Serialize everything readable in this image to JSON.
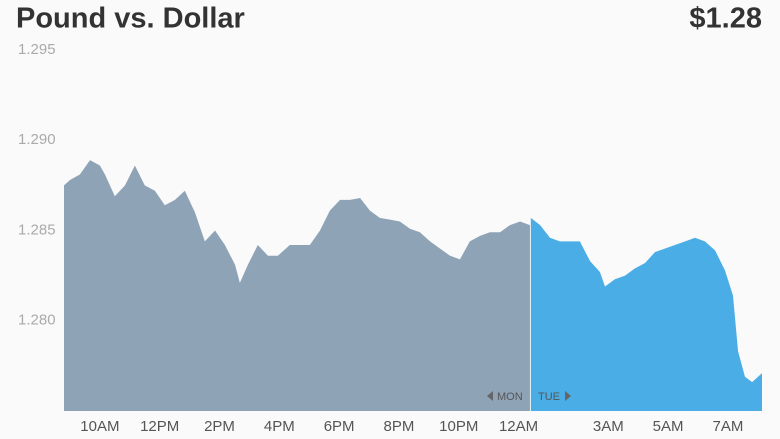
{
  "chart_data": {
    "type": "area",
    "title": "Pound vs. Dollar",
    "current_value": "$1.28",
    "xlim": [
      8.8,
      32.14
    ],
    "ylim": [
      1.275,
      1.295
    ],
    "yticks": [
      {
        "value": 1.295,
        "label": "1.295"
      },
      {
        "value": 1.29,
        "label": "1.290"
      },
      {
        "value": 1.285,
        "label": "1.285"
      },
      {
        "value": 1.28,
        "label": "1.280"
      }
    ],
    "xticks": [
      {
        "value": 10,
        "label": "10AM"
      },
      {
        "value": 12,
        "label": "12PM"
      },
      {
        "value": 14,
        "label": "2PM"
      },
      {
        "value": 16,
        "label": "4PM"
      },
      {
        "value": 18,
        "label": "6PM"
      },
      {
        "value": 20,
        "label": "8PM"
      },
      {
        "value": 22,
        "label": "10PM"
      },
      {
        "value": 24,
        "label": "12AM"
      },
      {
        "value": 27,
        "label": "3AM"
      },
      {
        "value": 29,
        "label": "5AM"
      },
      {
        "value": 31,
        "label": "7AM"
      }
    ],
    "grid": false,
    "annotations": [
      "MON",
      "TUE"
    ],
    "series": [
      {
        "color": "#8fa3b6",
        "x": [
          8.8,
          9.0,
          9.33,
          9.67,
          10,
          10.17,
          10.5,
          10.84,
          11.17,
          11.5,
          11.84,
          12.17,
          12.51,
          12.84,
          13.18,
          13.51,
          13.85,
          14.18,
          14.52,
          14.68,
          14.95,
          15.28,
          15.62,
          15.95,
          16.35,
          16.69,
          17.02,
          17.36,
          17.69,
          18.03,
          18.36,
          18.7,
          19.03,
          19.36,
          19.7,
          20.03,
          20.37,
          20.7,
          21.04,
          21.37,
          21.71,
          22.04,
          22.37,
          22.71,
          23.04,
          23.38,
          23.71,
          24.05,
          24.38
        ],
        "values": [
          1.2875,
          1.2878,
          1.2881,
          1.2889,
          1.2886,
          1.2881,
          1.2869,
          1.2875,
          1.2886,
          1.2875,
          1.2872,
          1.2864,
          1.2867,
          1.2872,
          1.286,
          1.2844,
          1.285,
          1.2842,
          1.2831,
          1.2821,
          1.2831,
          1.2842,
          1.2836,
          1.2836,
          1.2842,
          1.2842,
          1.2842,
          1.285,
          1.2861,
          1.2867,
          1.2867,
          1.2868,
          1.2861,
          1.2857,
          1.2856,
          1.2855,
          1.2851,
          1.2849,
          1.2844,
          1.284,
          1.2836,
          1.2834,
          1.2844,
          1.2847,
          1.2849,
          1.2849,
          1.2853,
          1.2855,
          1.2853
        ]
      },
      {
        "color": "#4aade6",
        "x": [
          24.41,
          24.72,
          25.05,
          25.38,
          25.72,
          26.05,
          26.39,
          26.72,
          26.89,
          27.22,
          27.56,
          27.89,
          28.23,
          28.56,
          28.9,
          29.23,
          29.57,
          29.9,
          30.23,
          30.57,
          30.9,
          31.17,
          31.34,
          31.57,
          31.81,
          32.14
        ],
        "values": [
          1.2857,
          1.2853,
          1.2846,
          1.2844,
          1.2844,
          1.2844,
          1.2833,
          1.2827,
          1.2819,
          1.2823,
          1.2825,
          1.2829,
          1.2832,
          1.2838,
          1.284,
          1.2842,
          1.2844,
          1.2846,
          1.2844,
          1.2839,
          1.2828,
          1.2814,
          1.2783,
          1.2769,
          1.2766,
          1.2771
        ]
      }
    ]
  }
}
